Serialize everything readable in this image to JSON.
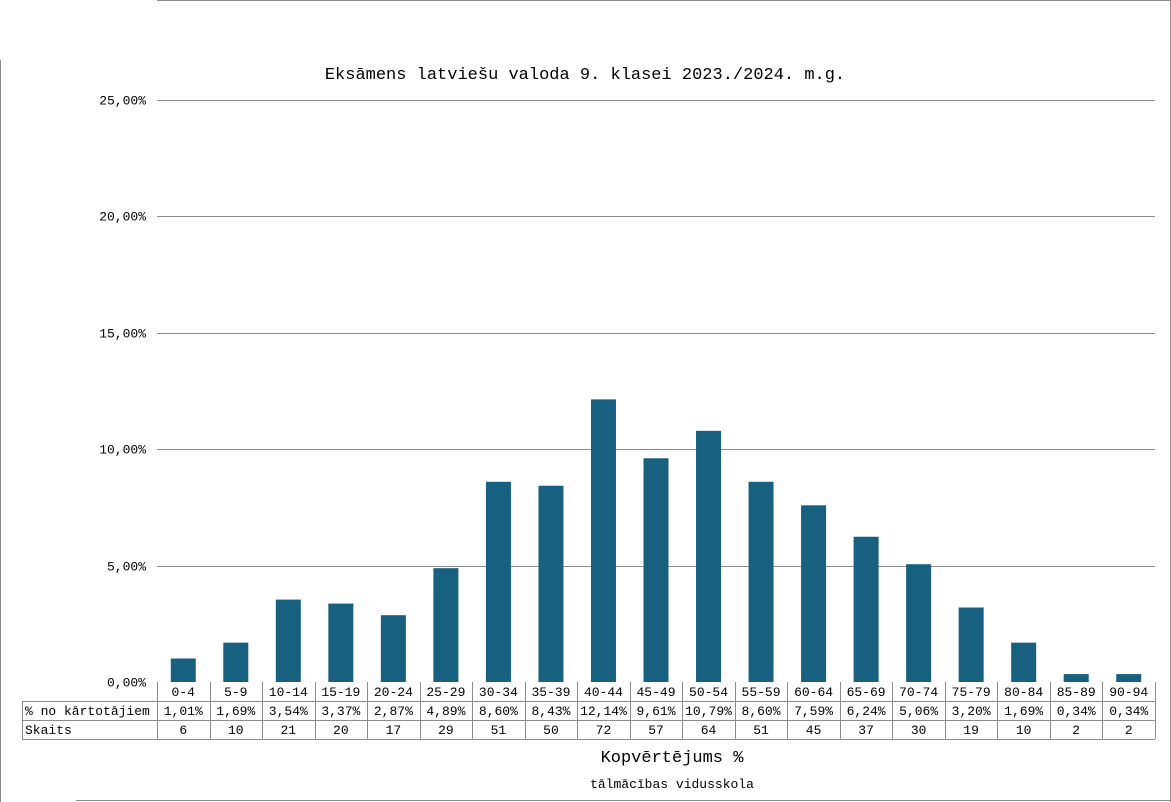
{
  "chart_data": {
    "type": "bar",
    "title": "Eksāmens latviešu valoda 9. klasei 2023./2024. m.g.",
    "xlabel": "Kopvērtējums %",
    "subtitle": "tālmācības vidusskola",
    "categories": [
      "0-4",
      "5-9",
      "10-14",
      "15-19",
      "20-24",
      "25-29",
      "30-34",
      "35-39",
      "40-44",
      "45-49",
      "50-54",
      "55-59",
      "60-64",
      "65-69",
      "70-74",
      "75-79",
      "80-84",
      "85-89",
      "90-94"
    ],
    "series": [
      {
        "name": "% no kārtotājiem",
        "values": [
          1.01,
          1.69,
          3.54,
          3.37,
          2.87,
          4.89,
          8.6,
          8.43,
          12.14,
          9.61,
          10.79,
          8.6,
          7.59,
          6.24,
          5.06,
          3.2,
          1.69,
          0.34,
          0.34
        ],
        "labels": [
          "1,01%",
          "1,69%",
          "3,54%",
          "3,37%",
          "2,87%",
          "4,89%",
          "8,60%",
          "8,43%",
          "12,14%",
          "9,61%",
          "10,79%",
          "8,60%",
          "7,59%",
          "6,24%",
          "5,06%",
          "3,20%",
          "1,69%",
          "0,34%",
          "0,34%"
        ]
      }
    ],
    "table_rows": [
      {
        "label": "% no kārtotājiem",
        "values": [
          "1,01%",
          "1,69%",
          "3,54%",
          "3,37%",
          "2,87%",
          "4,89%",
          "8,60%",
          "8,43%",
          "12,14%",
          "9,61%",
          "10,79%",
          "8,60%",
          "7,59%",
          "6,24%",
          "5,06%",
          "3,20%",
          "1,69%",
          "0,34%",
          "0,34%"
        ]
      },
      {
        "label": "Skaits",
        "values": [
          "6",
          "10",
          "21",
          "20",
          "17",
          "29",
          "51",
          "50",
          "72",
          "57",
          "64",
          "51",
          "45",
          "37",
          "30",
          "19",
          "10",
          "2",
          "2"
        ]
      }
    ],
    "y_ticks": [
      {
        "value": 0,
        "label": "0,00%"
      },
      {
        "value": 5,
        "label": "5,00%"
      },
      {
        "value": 10,
        "label": "10,00%"
      },
      {
        "value": 15,
        "label": "15,00%"
      },
      {
        "value": 20,
        "label": "20,00%"
      },
      {
        "value": 25,
        "label": "25,00%"
      }
    ],
    "ylim": [
      0,
      25
    ],
    "grid": true,
    "bar_color": "#17607f",
    "grid_color": "#8c8c8c"
  }
}
